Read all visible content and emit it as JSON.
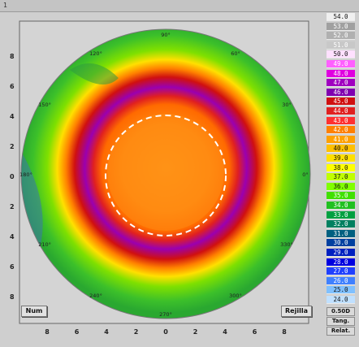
{
  "topbar": {
    "marker": "1"
  },
  "axes": {
    "x_ticks": [
      "8",
      "6",
      "4",
      "2",
      "0",
      "2",
      "4",
      "6",
      "8"
    ],
    "y_ticks": [
      "8",
      "6",
      "4",
      "2",
      "0",
      "2",
      "4",
      "6",
      "8"
    ]
  },
  "angle_labels": [
    "0°",
    "30°",
    "60°",
    "90°",
    "120°",
    "150°",
    "180°",
    "210°",
    "240°",
    "270°",
    "300°",
    "330°"
  ],
  "buttons": {
    "num": "Num",
    "grid": "Rejilla"
  },
  "scale": {
    "values": [
      "54.0",
      "53.0",
      "52.0",
      "51.0",
      "50.0",
      "49.0",
      "48.0",
      "47.0",
      "46.0",
      "45.0",
      "44.0",
      "43.0",
      "42.0",
      "41.0",
      "40.0",
      "39.0",
      "38.0",
      "37.0",
      "36.0",
      "35.0",
      "34.0",
      "33.0",
      "32.0",
      "31.0",
      "30.0",
      "29.0",
      "28.0",
      "27.0",
      "26.0",
      "25.0",
      "24.0"
    ],
    "colors": [
      "#f0f0f0",
      "#a0a0a0",
      "#b0b0b0",
      "#c8c8c8",
      "#ffe0ff",
      "#ff60ff",
      "#e000e0",
      "#a000c0",
      "#8000b0",
      "#d01010",
      "#e02020",
      "#ff3030",
      "#ff8000",
      "#ffa000",
      "#ffc000",
      "#ffe000",
      "#ffff00",
      "#c0ff00",
      "#80ff00",
      "#40e000",
      "#20c020",
      "#00a040",
      "#008060",
      "#006080",
      "#0040a0",
      "#0020c0",
      "#0000e0",
      "#2040ff",
      "#4080ff",
      "#80c0ff",
      "#c0e0ff"
    ],
    "step": "0.50D",
    "mode": "Tang.",
    "ref": "Relat."
  },
  "colors": {
    "background": "#cfcfcf",
    "plot_bg": "#d4d4d4"
  }
}
